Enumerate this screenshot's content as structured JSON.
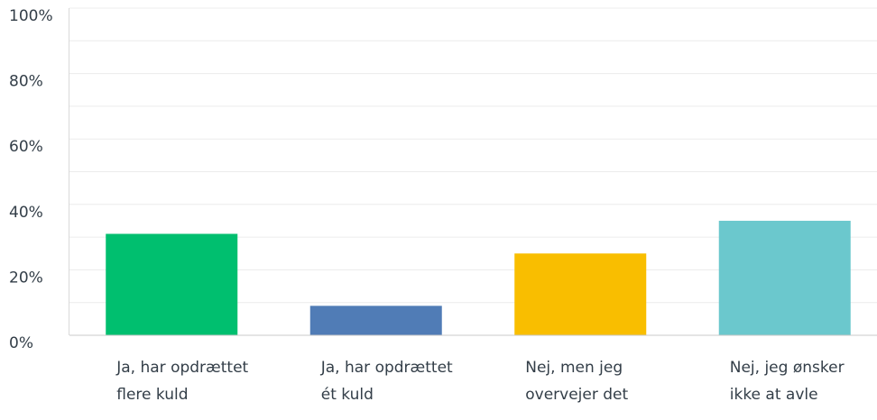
{
  "chart_data": {
    "type": "bar",
    "categories": [
      "Ja, har opdrættet flere kuld",
      "Ja, har opdrættet ét kuld",
      "Nej, men jeg overvejer det",
      "Nej, jeg ønsker ikke at avle"
    ],
    "values": [
      31,
      9,
      25,
      35
    ],
    "colors": [
      "#00bf6f",
      "#507cb6",
      "#f9be00",
      "#6bc8cd"
    ],
    "ylim": [
      0,
      100
    ],
    "yticks": [
      {
        "value": 0,
        "label": "0%"
      },
      {
        "value": 20,
        "label": "20%"
      },
      {
        "value": 40,
        "label": "40%"
      },
      {
        "value": 60,
        "label": "60%"
      },
      {
        "value": 80,
        "label": "80%"
      },
      {
        "value": 100,
        "label": "100%"
      }
    ],
    "minor_yticks": [
      10,
      30,
      50,
      70,
      90
    ],
    "grid": true
  }
}
